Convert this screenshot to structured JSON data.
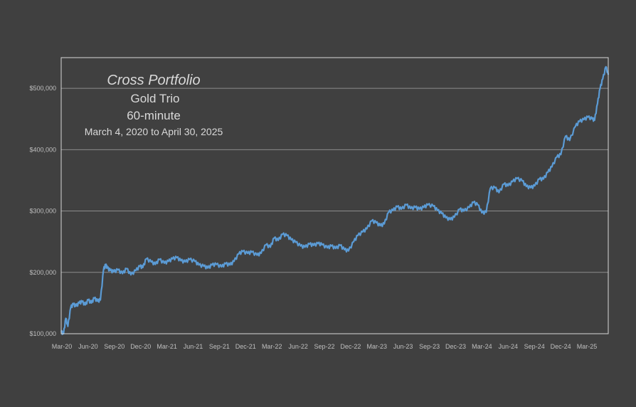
{
  "chart_data": {
    "type": "line",
    "title": "Cross Portfolio",
    "subtitle_lines": [
      "Gold Trio",
      "60-minute",
      "March 4, 2020 to April 30, 2025"
    ],
    "xlabel": "",
    "ylabel": "",
    "x_tick_labels": [
      "Mar-20",
      "Jun-20",
      "Sep-20",
      "Dec-20",
      "Mar-21",
      "Jun-21",
      "Sep-21",
      "Dec-21",
      "Mar-22",
      "Jun-22",
      "Sep-22",
      "Dec-22",
      "Mar-23",
      "Jun-23",
      "Sep-23",
      "Dec-23",
      "Mar-24",
      "Jun-24",
      "Sep-24",
      "Dec-24",
      "Mar-25"
    ],
    "y_tick_labels": [
      "$100,000",
      "$200,000",
      "$300,000",
      "$400,000",
      "$500,000"
    ],
    "y_ticks": [
      100000,
      200000,
      300000,
      400000,
      500000
    ],
    "ylim": [
      100000,
      550000
    ],
    "xlim": [
      "2020-03-04",
      "2025-04-30"
    ],
    "grid": true,
    "colors": {
      "background": "#404040",
      "line": "#5b9bd5",
      "grid": "#8c8c8c",
      "frame": "#d9d9d9",
      "text": "#d9d9d9"
    },
    "series": [
      {
        "x": [
          "2020-03-04",
          "2020-03-12",
          "2020-03-20",
          "2020-03-27",
          "2020-04-06",
          "2020-04-15",
          "2020-04-24",
          "2020-05-05",
          "2020-05-15",
          "2020-05-26",
          "2020-06-05",
          "2020-06-16",
          "2020-06-26",
          "2020-07-07",
          "2020-07-17",
          "2020-07-28",
          "2020-08-04",
          "2020-08-10",
          "2020-08-20",
          "2020-09-01",
          "2020-09-15",
          "2020-10-01",
          "2020-10-15",
          "2020-10-30",
          "2020-11-16",
          "2020-11-30",
          "2020-12-10",
          "2020-12-22",
          "2021-01-08",
          "2021-01-22",
          "2021-02-05",
          "2021-02-22",
          "2021-03-08",
          "2021-03-22",
          "2021-04-06",
          "2021-04-20",
          "2021-05-05",
          "2021-05-20",
          "2021-06-07",
          "2021-06-21",
          "2021-07-08",
          "2021-07-22",
          "2021-08-05",
          "2021-08-20",
          "2021-09-07",
          "2021-09-21",
          "2021-10-06",
          "2021-10-20",
          "2021-11-05",
          "2021-11-19",
          "2021-12-06",
          "2021-12-20",
          "2022-01-07",
          "2022-01-21",
          "2022-02-07",
          "2022-02-22",
          "2022-03-07",
          "2022-03-21",
          "2022-04-05",
          "2022-04-20",
          "2022-05-05",
          "2022-05-20",
          "2022-06-06",
          "2022-06-21",
          "2022-07-07",
          "2022-07-21",
          "2022-08-05",
          "2022-08-19",
          "2022-09-06",
          "2022-09-20",
          "2022-10-05",
          "2022-10-20",
          "2022-11-04",
          "2022-11-18",
          "2022-12-06",
          "2022-12-20",
          "2023-01-06",
          "2023-01-20",
          "2023-02-06",
          "2023-02-21",
          "2023-03-07",
          "2023-03-21",
          "2023-04-05",
          "2023-04-20",
          "2023-05-05",
          "2023-05-19",
          "2023-06-05",
          "2023-06-20",
          "2023-07-06",
          "2023-07-20",
          "2023-08-04",
          "2023-08-18",
          "2023-09-06",
          "2023-09-20",
          "2023-10-05",
          "2023-10-19",
          "2023-11-03",
          "2023-11-17",
          "2023-12-06",
          "2023-12-20",
          "2024-01-08",
          "2024-01-22",
          "2024-02-06",
          "2024-02-20",
          "2024-03-06",
          "2024-03-20",
          "2024-04-05",
          "2024-04-19",
          "2024-05-06",
          "2024-05-20",
          "2024-06-05",
          "2024-06-20",
          "2024-07-08",
          "2024-07-22",
          "2024-08-06",
          "2024-08-20",
          "2024-09-05",
          "2024-09-19",
          "2024-10-04",
          "2024-10-18",
          "2024-11-04",
          "2024-11-18",
          "2024-12-04",
          "2024-12-18",
          "2025-01-07",
          "2025-01-21",
          "2025-02-05",
          "2025-02-19",
          "2025-03-06",
          "2025-03-14",
          "2025-03-24",
          "2025-04-02",
          "2025-04-11",
          "2025-04-22",
          "2025-04-30"
        ],
        "y": [
          103000,
          100000,
          125000,
          112000,
          143000,
          148000,
          145000,
          150000,
          152000,
          147000,
          155000,
          150000,
          158000,
          153000,
          155000,
          205000,
          212000,
          207000,
          203000,
          201000,
          204000,
          198000,
          206000,
          196000,
          203000,
          210000,
          208000,
          222000,
          217000,
          213000,
          221000,
          215000,
          218000,
          222000,
          224000,
          219000,
          217000,
          221000,
          218000,
          212000,
          210000,
          207000,
          212000,
          213000,
          209000,
          214000,
          212000,
          218000,
          230000,
          234000,
          231000,
          233000,
          228000,
          231000,
          245000,
          241000,
          256000,
          252000,
          262000,
          260000,
          253000,
          249000,
          243000,
          241000,
          246000,
          244000,
          247000,
          245000,
          240000,
          243000,
          239000,
          244000,
          237000,
          235000,
          250000,
          260000,
          266000,
          271000,
          284000,
          281000,
          276000,
          279000,
          298000,
          301000,
          307000,
          303000,
          310000,
          304000,
          306000,
          303000,
          306000,
          310000,
          308000,
          301000,
          296000,
          289000,
          286000,
          290000,
          303000,
          300000,
          306000,
          314000,
          310000,
          297000,
          298000,
          337000,
          338000,
          330000,
          344000,
          341000,
          348000,
          353000,
          349000,
          340000,
          338000,
          341000,
          352000,
          352000,
          363000,
          372000,
          388000,
          392000,
          422000,
          415000,
          438000,
          446000,
          449000,
          453000,
          450000,
          448000,
          475000,
          500000,
          515000,
          535000,
          522000
        ]
      }
    ]
  }
}
